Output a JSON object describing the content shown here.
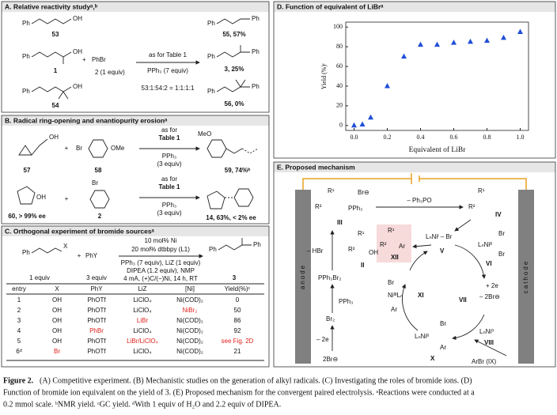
{
  "panel_a": {
    "title": "A. Relative reactivity studyᵃ,ᵇ",
    "texts": [
      "Ph",
      "OH",
      "53",
      "Ph",
      "OH",
      "1",
      "+",
      "PhBr",
      "2 (1 equiv)",
      "as for Table 1",
      "PPh₃ (7 equiv)",
      "53:1:54:2 = 1:1:1:1",
      "Ph",
      "OH",
      "54",
      "Ph",
      "Ph",
      "55, 57%",
      "Ph",
      "Ph",
      "3, 25%",
      "Ph",
      "Ph",
      "56, 0%"
    ]
  },
  "panel_b": {
    "title": "B. Radical ring-opening and enantiopurity erosionᵃ",
    "texts": [
      "57",
      "OH",
      "+",
      "Br",
      "OMe",
      "58",
      "as for",
      "Table 1",
      "PPh₃",
      "(3 equiv)",
      "MeO",
      "59, 74%ᵇ",
      "OH",
      "60, > 99% ee",
      "+",
      "Br",
      "2",
      "as for",
      "Table 1",
      "PPh₃",
      "(3 equiv)",
      "14, 63%, < 2% ee"
    ]
  },
  "panel_c": {
    "title": "C. Orthogonal experiment of bromide sourcesᵃ",
    "texts": [
      "Ph",
      "X",
      "1 equiv",
      "+",
      "PhY",
      "3 equiv",
      "10 mol% Ni",
      "20 mol% dtbbpy (L1)",
      "PPh₃ (7 equiv), LiZ (1 equiv)",
      "DIPEA (1.2 equiv), NMP",
      "4 mA, (+)C/(−)Ni, 14 h, RT",
      "Ph",
      "Ph",
      "3"
    ],
    "table": {
      "header": [
        "entry",
        "X",
        "PhY",
        "LiZ",
        "[Ni]",
        "Yield(%)ᶜ"
      ],
      "rows": [
        [
          "1",
          "OH",
          "PhOTf",
          "LiClO₄",
          "Ni(COD)₂",
          "0"
        ],
        [
          "2",
          "OH",
          "PhOTf",
          "LiClO₄",
          "NiBr₂",
          "50"
        ],
        [
          "3",
          "OH",
          "PhOTf",
          "LiBr",
          "Ni(COD)₂",
          "86"
        ],
        [
          "4",
          "OH",
          "PhBr",
          "LiClO₄",
          "Ni(COD)₂",
          "92"
        ],
        [
          "5",
          "OH",
          "PhOTf",
          "LiBr/LiClO₄",
          "Ni(COD)₂",
          "see Fig. 2D"
        ],
        [
          "6ᵈ",
          "Br",
          "PhOTf",
          "LiClO₄",
          "Ni(COD)₂",
          "21"
        ]
      ],
      "highlight_color": "#e0201b",
      "highlighted": [
        [
          1,
          4
        ],
        [
          2,
          3
        ],
        [
          3,
          2
        ],
        [
          4,
          3
        ],
        [
          4,
          5
        ],
        [
          5,
          1
        ]
      ]
    }
  },
  "chart_data": {
    "type": "scatter",
    "title": "D. Function of equivalent of LiBrᵃ",
    "x_label": "Equivalent of LiBr",
    "y_label": "Yield (%)ᶜ",
    "color": "#1f4fd6",
    "x": [
      0.0,
      0.05,
      0.1,
      0.2,
      0.3,
      0.4,
      0.5,
      0.6,
      0.7,
      0.8,
      0.9,
      1.0
    ],
    "values": [
      0,
      1,
      8,
      40,
      70,
      82,
      82,
      84,
      85,
      86,
      89,
      95
    ],
    "xlim": [
      -0.05,
      1.05
    ],
    "ylim": [
      -5,
      105
    ],
    "xticks": [
      {
        "value": 0,
        "label": "0.0"
      },
      {
        "value": 0.2,
        "label": "0.2"
      },
      {
        "value": 0.4,
        "label": "0.4"
      },
      {
        "value": 0.6,
        "label": "0.6"
      },
      {
        "value": 0.8,
        "label": "0.8"
      },
      {
        "value": 1,
        "label": "1.0"
      }
    ],
    "yticks": [
      0,
      20,
      40,
      60,
      80,
      100
    ],
    "grid": false
  },
  "panel_e": {
    "title": "E. Proposed mechanism",
    "labels": [
      "anode",
      "cathode",
      "R¹",
      "R²",
      "PPh₃",
      "Br⊖",
      "III",
      "– Ph₃PO",
      "R¹",
      "R²",
      "IV",
      "– HBr",
      "R¹",
      "R²",
      "OH",
      "II",
      "PPh₃Br₂",
      "PPh₃",
      "Br₂",
      "– 2e",
      "2Br⊖",
      "R¹",
      "R²",
      "Ar",
      "XII",
      "LₙNiᴵ – Br",
      "V",
      "Br",
      "LₙNiᴵᴵ",
      "Br",
      "VI",
      "Br",
      "NiᴵᴵᴵLₙ",
      "Ar",
      "XI",
      "VII",
      "+ 2e",
      "– 2Br⊖",
      "LₙNi⁰",
      "VIII",
      "Br",
      "LₙNiᴵᴵ",
      "Ar",
      "X",
      "ArBr (IX)"
    ]
  },
  "caption": {
    "label": "Figure 2.",
    "lines": [
      "(A) Competitive experiment. (B) Mechanistic studies on the generation of alkyl radicals. (C) Investigating the roles of bromide ions. (D)",
      "Function of bromide ion equivalent on the yield of 3. (E) Proposed mechanism for the convergent paired electrolysis. ᵃReactions were conducted at a",
      "0.2 mmol scale. ᵇNMR yield. ᶜGC yield. ᵈWith 1 equiv of H₂O and 2.2 equiv of DIPEA."
    ]
  }
}
